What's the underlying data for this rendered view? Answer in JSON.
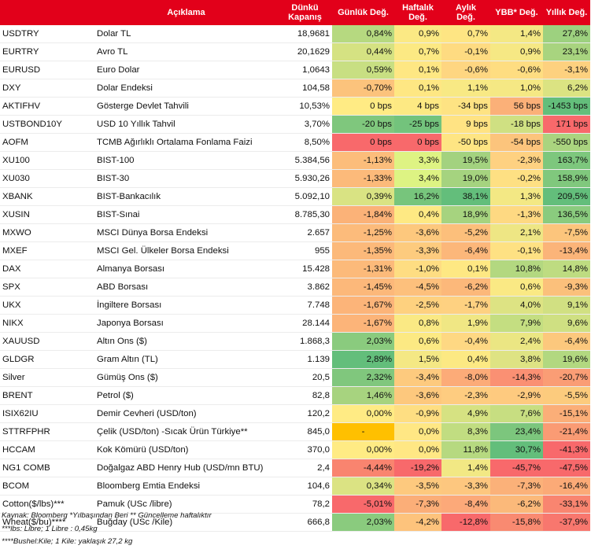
{
  "headers": {
    "code": "",
    "desc": "Açıklama",
    "close_line1": "Dünkü",
    "close_line2": "Kapanış",
    "daily": "Günlük Değ.",
    "weekly_line1": "Haftalık",
    "weekly_line2": "Değ.",
    "monthly_line1": "Aylık",
    "monthly_line2": "Değ.",
    "ytd": "YBB* Değ.",
    "yearly": "Yıllık Değ."
  },
  "rows": [
    {
      "code": "USDTRY",
      "desc": "Dolar TL",
      "close": "18,9681",
      "daily": "0,84%",
      "weekly": "0,9%",
      "monthly": "0,7%",
      "ytd": "1,4%",
      "yearly": "27,8%",
      "colors": {
        "daily": "#b6d980",
        "weekly": "#fbe984",
        "monthly": "#fee583",
        "ytd": "#f4e884",
        "yearly": "#9dd17f"
      }
    },
    {
      "code": "EURTRY",
      "desc": "Avro TL",
      "close": "20,1629",
      "daily": "0,44%",
      "weekly": "0,7%",
      "monthly": "-0,1%",
      "ytd": "0,9%",
      "yearly": "23,1%",
      "colors": {
        "daily": "#d5e282",
        "weekly": "#fce983",
        "monthly": "#fedb81",
        "ytd": "#f6e884",
        "yearly": "#a8d47f"
      }
    },
    {
      "code": "EURUSD",
      "desc": "Euro Dolar",
      "close": "1,0643",
      "daily": "0,59%",
      "weekly": "0,1%",
      "monthly": "-0,6%",
      "ytd": "-0,6%",
      "yearly": "-3,1%",
      "colors": {
        "daily": "#c8df82",
        "weekly": "#fee783",
        "monthly": "#fed681",
        "ytd": "#fedd81",
        "yearly": "#fdd17f"
      }
    },
    {
      "code": "DXY",
      "desc": "Dolar Endeksi",
      "close": "104,58",
      "daily": "-0,70%",
      "weekly": "0,1%",
      "monthly": "1,1%",
      "ytd": "1,0%",
      "yearly": "6,2%",
      "colors": {
        "daily": "#fcc37c",
        "weekly": "#fee783",
        "monthly": "#f8e984",
        "ytd": "#f5e884",
        "yearly": "#dbe382"
      }
    },
    {
      "code": "AKTIFHV",
      "desc": "Gösterge Devlet Tahvili",
      "close": "10,53%",
      "daily": "0 bps",
      "weekly": "4 bps",
      "monthly": "-34 bps",
      "ytd": "56 bps",
      "yearly": "-1453 bps",
      "colors": {
        "daily": "#ffeb84",
        "weekly": "#fde983",
        "monthly": "#fee383",
        "ytd": "#fbb078",
        "yearly": "#63be7b"
      }
    },
    {
      "code": "USTBOND10Y",
      "desc": "USD 10 Yıllık Tahvil",
      "close": "3,70%",
      "daily": "-20 bps",
      "weekly": "-25 bps",
      "monthly": "9 bps",
      "ytd": "-18 bps",
      "yearly": "171 bps",
      "colors": {
        "daily": "#7fc77d",
        "weekly": "#73c37c",
        "monthly": "#ffe383",
        "ytd": "#cfe082",
        "yearly": "#f8696b"
      }
    },
    {
      "code": "AOFM",
      "desc": "TCMB Ağırlıklı Ortalama Fonlama Faizi",
      "close": "8,50%",
      "daily": "0 bps",
      "weekly": "0 bps",
      "monthly": "-50 bps",
      "ytd": "-54 bps",
      "yearly": "-550 bps",
      "colors": {
        "daily": "#f8696b",
        "weekly": "#f8696b",
        "monthly": "#fee583",
        "ytd": "#fcc47c",
        "yearly": "#aad47f"
      }
    },
    {
      "code": "XU100",
      "desc": "BIST-100",
      "close": "5.384,56",
      "daily": "-1,13%",
      "weekly": "3,3%",
      "monthly": "19,5%",
      "ytd": "-2,3%",
      "yearly": "163,7%",
      "colors": {
        "daily": "#fcbd7b",
        "weekly": "#def383",
        "monthly": "#a3d27f",
        "ytd": "#fed181",
        "yearly": "#7dc77d"
      }
    },
    {
      "code": "XU030",
      "desc": "BIST-30",
      "close": "5.930,26",
      "daily": "-1,33%",
      "weekly": "3,4%",
      "monthly": "19,0%",
      "ytd": "-0,2%",
      "yearly": "158,9%",
      "colors": {
        "daily": "#fcba7a",
        "weekly": "#ddf383",
        "monthly": "#a5d37f",
        "ytd": "#fee083",
        "yearly": "#80c87d"
      }
    },
    {
      "code": "XBANK",
      "desc": "BIST-Bankacılık",
      "close": "5.092,10",
      "daily": "0,39%",
      "weekly": "16,2%",
      "monthly": "38,1%",
      "ytd": "1,3%",
      "yearly": "209,5%",
      "colors": {
        "daily": "#d9e383",
        "weekly": "#77c57c",
        "monthly": "#63be7b",
        "ytd": "#f3e884",
        "yearly": "#63be7b"
      }
    },
    {
      "code": "XUSIN",
      "desc": "BIST-Sınai",
      "close": "8.785,30",
      "daily": "-1,84%",
      "weekly": "0,4%",
      "monthly": "18,9%",
      "ytd": "-1,3%",
      "yearly": "136,5%",
      "colors": {
        "daily": "#fbb278",
        "weekly": "#fee983",
        "monthly": "#a6d37f",
        "ytd": "#fed982",
        "yearly": "#8acb7e"
      }
    },
    {
      "code": "MXWO",
      "desc": "MSCI Dünya Borsa Endeksi",
      "close": "2.657",
      "daily": "-1,25%",
      "weekly": "-3,6%",
      "monthly": "-5,2%",
      "ytd": "2,1%",
      "yearly": "-7,5%",
      "colors": {
        "daily": "#fcbb7b",
        "weekly": "#fdc87d",
        "monthly": "#fcbf7b",
        "ytd": "#eee684",
        "yearly": "#fcc57c"
      }
    },
    {
      "code": "MXEF",
      "desc": "MSCI Gel. Ülkeler Borsa Endeksi",
      "close": "955",
      "daily": "-1,35%",
      "weekly": "-3,3%",
      "monthly": "-6,4%",
      "ytd": "-0,1%",
      "yearly": "-13,4%",
      "colors": {
        "daily": "#fcb97a",
        "weekly": "#fdcb7e",
        "monthly": "#fcb77a",
        "ytd": "#fee183",
        "yearly": "#fbb479"
      }
    },
    {
      "code": "DAX",
      "desc": "Almanya Borsası",
      "close": "15.428",
      "daily": "-1,31%",
      "weekly": "-1,0%",
      "monthly": "0,1%",
      "ytd": "10,8%",
      "yearly": "14,8%",
      "colors": {
        "daily": "#fcba7a",
        "weekly": "#fedd82",
        "monthly": "#fee883",
        "ytd": "#b3d880",
        "yearly": "#bedc81"
      }
    },
    {
      "code": "SPX",
      "desc": "ABD Borsası",
      "close": "3.862",
      "daily": "-1,45%",
      "weekly": "-4,5%",
      "monthly": "-6,2%",
      "ytd": "0,6%",
      "yearly": "-9,3%",
      "colors": {
        "daily": "#fcb87a",
        "weekly": "#fdc07c",
        "monthly": "#fcb87a",
        "ytd": "#fae984",
        "yearly": "#fbc07b"
      }
    },
    {
      "code": "UKX",
      "desc": "İngiltere Borsası",
      "close": "7.748",
      "daily": "-1,67%",
      "weekly": "-2,5%",
      "monthly": "-1,7%",
      "ytd": "4,0%",
      "yearly": "9,1%",
      "colors": {
        "daily": "#fcb479",
        "weekly": "#fed17f",
        "monthly": "#fed181",
        "ytd": "#dde383",
        "yearly": "#d1e082"
      }
    },
    {
      "code": "NIKX",
      "desc": "Japonya Borsası",
      "close": "28.144",
      "daily": "-1,67%",
      "weekly": "0,8%",
      "monthly": "1,9%",
      "ytd": "7,9%",
      "yearly": "9,6%",
      "colors": {
        "daily": "#fcb479",
        "weekly": "#fae984",
        "monthly": "#f0e784",
        "ytd": "#c4de81",
        "yearly": "#cfe082"
      }
    },
    {
      "code": "XAUUSD",
      "desc": "Altın Ons ($)",
      "close": "1.868,3",
      "daily": "2,03%",
      "weekly": "0,6%",
      "monthly": "-0,4%",
      "ytd": "2,4%",
      "yearly": "-6,4%",
      "colors": {
        "daily": "#8acb7e",
        "weekly": "#fce983",
        "monthly": "#fed883",
        "ytd": "#ebe683",
        "yearly": "#fcc87d"
      }
    },
    {
      "code": "GLDGR",
      "desc": "Gram Altın (TL)",
      "close": "1.139",
      "daily": "2,89%",
      "weekly": "1,5%",
      "monthly": "0,4%",
      "ytd": "3,8%",
      "yearly": "19,6%",
      "colors": {
        "daily": "#63be7b",
        "weekly": "#f4e884",
        "monthly": "#fce983",
        "ytd": "#dee383",
        "yearly": "#b2d880"
      }
    },
    {
      "code": "Silver",
      "desc": "Gümüş Ons ($)",
      "close": "20,5",
      "daily": "2,32%",
      "weekly": "-3,4%",
      "monthly": "-8,0%",
      "ytd": "-14,3%",
      "yearly": "-20,7%",
      "colors": {
        "daily": "#80c77d",
        "weekly": "#fdca7e",
        "monthly": "#fcab78",
        "ytd": "#fa9073",
        "yearly": "#fa9d75"
      }
    },
    {
      "code": "BRENT",
      "desc": "Petrol ($)",
      "close": "82,8",
      "daily": "1,46%",
      "weekly": "-3,6%",
      "monthly": "-2,3%",
      "ytd": "-2,9%",
      "yearly": "-5,5%",
      "colors": {
        "daily": "#a7d37f",
        "weekly": "#fdc87d",
        "monthly": "#fecc80",
        "ytd": "#feca7f",
        "yearly": "#fccb7d"
      }
    },
    {
      "code": "ISIX62IU",
      "desc": "Demir Cevheri (USD/ton)",
      "close": "120,2",
      "daily": "0,00%",
      "weekly": "-0,9%",
      "monthly": "4,9%",
      "ytd": "7,6%",
      "yearly": "-15,1%",
      "colors": {
        "daily": "#ffeb84",
        "weekly": "#fede82",
        "monthly": "#d6e282",
        "ytd": "#c7de81",
        "yearly": "#fbae78"
      }
    },
    {
      "code": "STTRFPHR",
      "desc": "Çelik (USD/ton) -Sıcak Ürün Türkiye**",
      "close": "845,0",
      "daily": "-",
      "weekly": "0,0%",
      "monthly": "8,3%",
      "ytd": "23,4%",
      "yearly": "-21,4%",
      "colors": {
        "daily": "#ffc000",
        "weekly": "#ffe784",
        "monthly": "#c1dd81",
        "ytd": "#7cc67d",
        "yearly": "#fa9b74"
      }
    },
    {
      "code": "HCCAM",
      "desc": "Kok Kömürü (USD/ton)",
      "close": "370,0",
      "daily": "0,00%",
      "weekly": "0,0%",
      "monthly": "11,8%",
      "ytd": "30,7%",
      "yearly": "-41,3%",
      "colors": {
        "daily": "#ffeb84",
        "weekly": "#ffe784",
        "monthly": "#b6d980",
        "ytd": "#63be7b",
        "yearly": "#f8696b"
      }
    },
    {
      "code": "NG1 COMB",
      "desc": "Doğalgaz ABD Henry Hub (USD/mn BTU)",
      "close": "2,4",
      "daily": "-4,44%",
      "weekly": "-19,2%",
      "monthly": "1,4%",
      "ytd": "-45,7%",
      "yearly": "-47,5%",
      "colors": {
        "daily": "#f9846f",
        "weekly": "#f8696b",
        "monthly": "#f2e884",
        "ytd": "#f8696b",
        "yearly": "#f8696b"
      }
    },
    {
      "code": "BCOM",
      "desc": "Bloomberg Emtia Endeksi",
      "close": "104,6",
      "daily": "0,34%",
      "weekly": "-3,5%",
      "monthly": "-3,3%",
      "ytd": "-7,3%",
      "yearly": "-16,4%",
      "colors": {
        "daily": "#dbe383",
        "weekly": "#fdc97e",
        "monthly": "#fdc77f",
        "ytd": "#fbb179",
        "yearly": "#fbaa77"
      }
    },
    {
      "code": "Cotton($/lbs)***",
      "desc": "Pamuk (USc /libre)",
      "close": "78,2",
      "daily": "-5,01%",
      "weekly": "-7,3%",
      "monthly": "-8,4%",
      "ytd": "-6,2%",
      "yearly": "-33,1%",
      "colors": {
        "daily": "#f8696b",
        "weekly": "#fbae78",
        "monthly": "#fca979",
        "ytd": "#fbb97a",
        "yearly": "#f98570"
      }
    },
    {
      "code": "Wheat($/bu)****",
      "desc": "Buğday (USc /Kile)",
      "close": "666,8",
      "daily": "2,03%",
      "weekly": "-4,2%",
      "monthly": "-12,8%",
      "ytd": "-15,8%",
      "yearly": "-37,9%",
      "colors": {
        "daily": "#8acb7e",
        "weekly": "#fdc37c",
        "monthly": "#f8696b",
        "ytd": "#f98a71",
        "yearly": "#f8776e"
      }
    }
  ],
  "notes": {
    "line1": "Kaynak: Bloomberg *Yılbaşından Beri  ** Güncelleme haftalıktır",
    "line2": "***lbs: Libre; 1 Libre : 0,45kg",
    "line3": "****Bushel:Kile; 1 Kile: yaklaşık 27,2 kg"
  }
}
